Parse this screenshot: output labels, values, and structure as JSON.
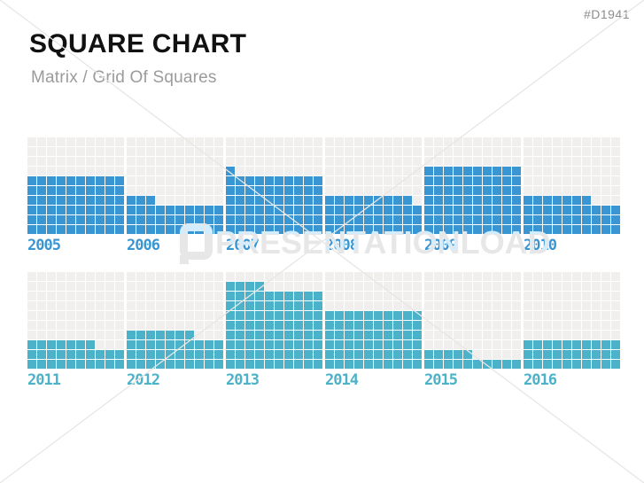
{
  "page": {
    "id_tag": "#D1941",
    "title": "SQUARE CHART",
    "subtitle": "Matrix / Grid Of Squares",
    "watermark_text": "PRESENTATIONLOAD"
  },
  "colors": {
    "series_blue": "#3a96d2",
    "series_teal": "#4bb2c9",
    "empty_cell": "#f0efed",
    "title_text": "#111111",
    "subtitle_text": "#9b9b9b",
    "id_tag_text": "#8c8c8c",
    "watermark": "#e9e7e4"
  },
  "chart_data": {
    "type": "waffle",
    "title": "SQUARE CHART",
    "subtitle": "Matrix / Grid Of Squares",
    "grid": {
      "columns": 10,
      "rows": 10,
      "max_per_chart": 100
    },
    "fill_direction": "bottom-up, left-to-right",
    "legend_position": "none",
    "series": [
      {
        "name": "2005-2010",
        "color": "#3a96d2",
        "items": [
          {
            "year": "2005",
            "filled": 60
          },
          {
            "year": "2006",
            "filled": 33
          },
          {
            "year": "2007",
            "filled": 61
          },
          {
            "year": "2008",
            "filled": 39
          },
          {
            "year": "2009",
            "filled": 70
          },
          {
            "year": "2010",
            "filled": 37
          }
        ]
      },
      {
        "name": "2011-2016",
        "color": "#4bb2c9",
        "items": [
          {
            "year": "2011",
            "filled": 27
          },
          {
            "year": "2012",
            "filled": 37
          },
          {
            "year": "2013",
            "filled": 84
          },
          {
            "year": "2014",
            "filled": 60
          },
          {
            "year": "2015",
            "filled": 15
          },
          {
            "year": "2016",
            "filled": 30
          }
        ]
      }
    ]
  }
}
